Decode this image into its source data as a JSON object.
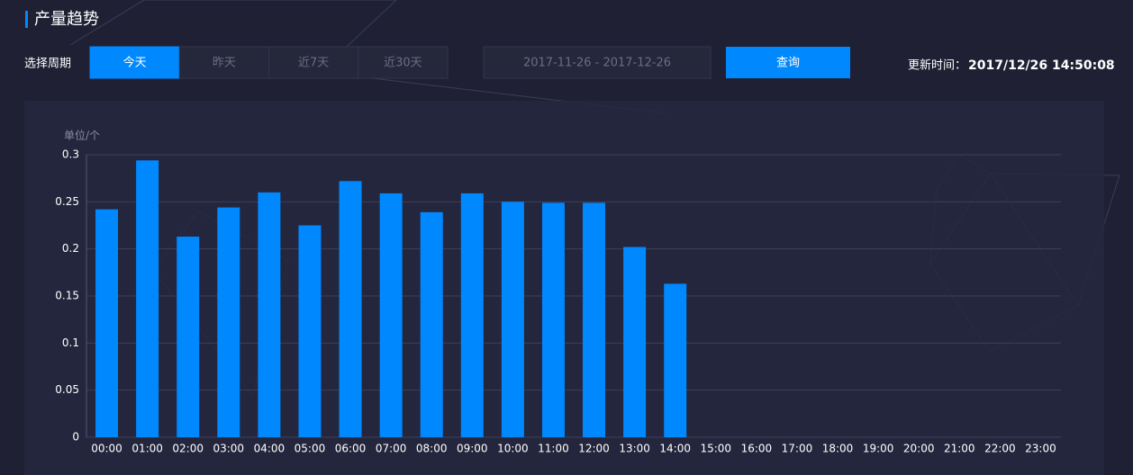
{
  "header": {
    "title": "产量趋势"
  },
  "controls": {
    "period_label": "选择周期",
    "periods": [
      "今天",
      "昨天",
      "近7天",
      "近30天"
    ],
    "active_period": 0,
    "date_range": "2017-11-26 - 2017-12-26",
    "query": "查询"
  },
  "update": {
    "label": "更新时间：",
    "time": "2017/12/26 14:50:08"
  },
  "chart_data": {
    "type": "bar",
    "y_label": "单位/个",
    "categories": [
      "00:00",
      "01:00",
      "02:00",
      "03:00",
      "04:00",
      "05:00",
      "06:00",
      "07:00",
      "08:00",
      "09:00",
      "10:00",
      "11:00",
      "12:00",
      "13:00",
      "14:00",
      "15:00",
      "16:00",
      "17:00",
      "18:00",
      "19:00",
      "20:00",
      "21:00",
      "22:00",
      "23:00"
    ],
    "values": [
      0.242,
      0.294,
      0.213,
      0.244,
      0.26,
      0.225,
      0.272,
      0.259,
      0.239,
      0.259,
      0.25,
      0.249,
      0.249,
      0.202,
      0.163,
      null,
      null,
      null,
      null,
      null,
      null,
      null,
      null,
      null
    ],
    "color": "#0088ff",
    "ylim": [
      0,
      0.3
    ],
    "yticks": [
      0,
      0.05,
      0.1,
      0.15,
      0.2,
      0.25,
      0.3
    ],
    "grid": true
  }
}
